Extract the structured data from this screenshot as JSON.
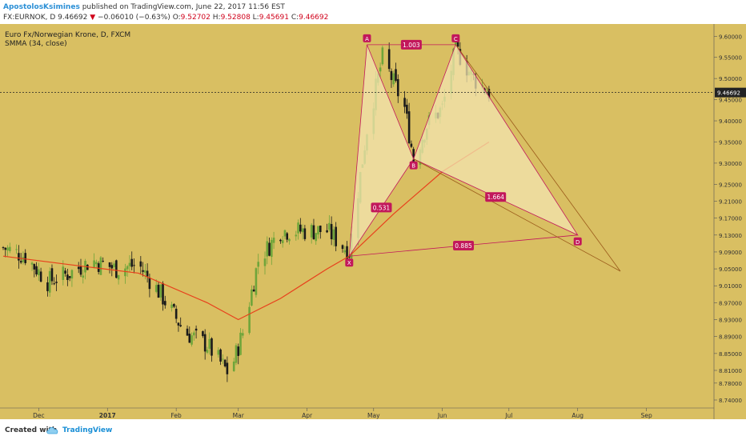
{
  "header": {
    "author": "ApostolosKsimines",
    "published": "published on TradingView.com, June 22, 2017 11:56 EST",
    "symbol": "FX:EURNOK, D",
    "price": "9.46692",
    "change": "−0.06010 (−0.63%)",
    "open": "9.52702",
    "high": "9.52808",
    "low": "9.45691",
    "close": "9.46692"
  },
  "legend": {
    "title": "Euro Fx/Norwegian Krone, D, FXCM",
    "indicator": "SMMA (34, close)"
  },
  "footer": {
    "created": "Created with",
    "brand": "TradingView"
  },
  "colors": {
    "background": "#d9bf62",
    "up": "#6fa53a",
    "down": "#1a1a1a",
    "smma": "#e8401c",
    "pattern": "#c2185b",
    "fill": "#f3e4b0"
  },
  "chart_data": {
    "type": "line",
    "title": "Euro Fx/Norwegian Krone, D, FXCM",
    "x_ticks": [
      "Dec",
      "2017",
      "Feb",
      "Mar",
      "Apr",
      "May",
      "Jun",
      "Jul",
      "Aug",
      "Sep"
    ],
    "y_ticks": [
      "9.60000",
      "9.55000",
      "9.50000",
      "9.45000",
      "9.40000",
      "9.35000",
      "9.30000",
      "9.25000",
      "9.21000",
      "9.17000",
      "9.13000",
      "9.09000",
      "9.05000",
      "9.01000",
      "8.97000",
      "8.93000",
      "8.89000",
      "8.85000",
      "8.81000",
      "8.78000",
      "8.74000"
    ],
    "last_price": "9.46692",
    "ylim": [
      8.74,
      9.61
    ],
    "series": [
      {
        "name": "EURNOK close",
        "x": [
          "2016-11-15",
          "2016-11-25",
          "2016-12-05",
          "2016-12-15",
          "2016-12-25",
          "2017-01-05",
          "2017-01-15",
          "2017-01-25",
          "2017-02-05",
          "2017-02-15",
          "2017-02-25",
          "2017-03-03",
          "2017-03-10",
          "2017-03-20",
          "2017-03-31",
          "2017-04-10",
          "2017-04-20",
          "2017-04-28",
          "2017-05-05",
          "2017-05-15",
          "2017-05-19",
          "2017-05-25",
          "2017-06-01",
          "2017-06-07",
          "2017-06-15",
          "2017-06-22"
        ],
        "values": [
          9.1,
          9.08,
          9.02,
          9.04,
          9.07,
          9.05,
          9.06,
          8.99,
          8.9,
          8.87,
          8.8,
          8.9,
          9.07,
          9.14,
          9.14,
          9.14,
          9.09,
          9.38,
          9.55,
          9.43,
          9.31,
          9.39,
          9.43,
          9.57,
          9.5,
          9.46692
        ]
      },
      {
        "name": "SMMA (34, close)",
        "x": [
          "2016-11-15",
          "2016-12-15",
          "2017-01-15",
          "2017-02-15",
          "2017-03-01",
          "2017-03-20",
          "2017-04-10",
          "2017-04-20",
          "2017-05-10",
          "2017-06-01",
          "2017-06-22"
        ],
        "values": [
          9.08,
          9.06,
          9.04,
          8.97,
          8.93,
          8.98,
          9.05,
          9.08,
          9.18,
          9.28,
          9.35
        ]
      }
    ],
    "pattern": {
      "points": [
        {
          "label": "X",
          "x": "2017-04-20",
          "y": 9.08
        },
        {
          "label": "A",
          "x": "2017-04-28",
          "y": 9.58
        },
        {
          "label": "B",
          "x": "2017-05-19",
          "y": 9.31
        },
        {
          "label": "C",
          "x": "2017-06-07",
          "y": 9.58
        },
        {
          "label": "D",
          "x": "2017-08-01",
          "y": 9.13
        }
      ],
      "ratios": [
        {
          "label": "1.003"
        },
        {
          "label": "0.531"
        },
        {
          "label": "1.664"
        },
        {
          "label": "0.885"
        }
      ]
    }
  }
}
